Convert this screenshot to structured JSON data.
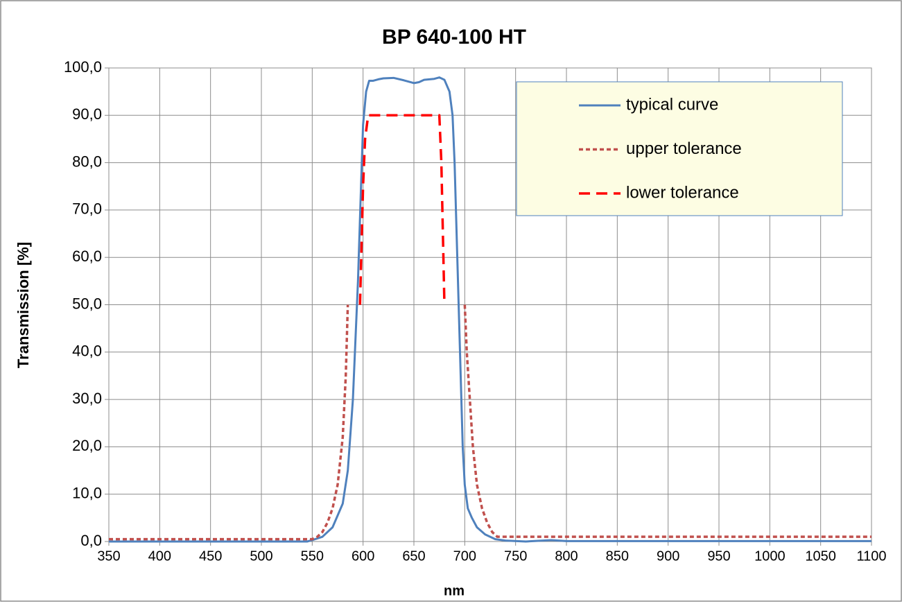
{
  "chart_data": {
    "type": "line",
    "title": "BP 640-100 HT",
    "xlabel": "nm",
    "ylabel": "Transmission [%]",
    "xlim": [
      350,
      1100
    ],
    "ylim": [
      0,
      100
    ],
    "xticks": [
      350,
      400,
      450,
      500,
      550,
      600,
      650,
      700,
      750,
      800,
      850,
      900,
      950,
      1000,
      1050,
      1100
    ],
    "yticks": [
      {
        "value": 0,
        "label": "0,0"
      },
      {
        "value": 10,
        "label": "10,0"
      },
      {
        "value": 20,
        "label": "20,0"
      },
      {
        "value": 30,
        "label": "30,0"
      },
      {
        "value": 40,
        "label": "40,0"
      },
      {
        "value": 50,
        "label": "50,0"
      },
      {
        "value": 60,
        "label": "60,0"
      },
      {
        "value": 70,
        "label": "70,0"
      },
      {
        "value": 80,
        "label": "80,0"
      },
      {
        "value": 90,
        "label": "90,0"
      },
      {
        "value": 100,
        "label": "100,0"
      }
    ],
    "grid": true,
    "legend": "upper right",
    "series": [
      {
        "name": "typical curve",
        "color": "#4f81bd",
        "style": "solid",
        "x": [
          350,
          545,
          550,
          560,
          570,
          580,
          585,
          590,
          595,
          598,
          600,
          603,
          606,
          610,
          615,
          620,
          630,
          640,
          650,
          655,
          660,
          670,
          675,
          680,
          685,
          688,
          690,
          692,
          694,
          696,
          698,
          700,
          703,
          707,
          712,
          720,
          730,
          740,
          760,
          785,
          800,
          1100
        ],
        "values": [
          0,
          0,
          0.3,
          1,
          3,
          8,
          15,
          30,
          55,
          75,
          88,
          95,
          97.3,
          97.3,
          97.6,
          97.8,
          97.9,
          97.4,
          96.8,
          97,
          97.5,
          97.7,
          98,
          97.5,
          95,
          90,
          80,
          65,
          50,
          35,
          20,
          12,
          7,
          5,
          3,
          1.5,
          0.5,
          0.2,
          0,
          0.3,
          0.1,
          0.1
        ]
      },
      {
        "name": "upper tolerance",
        "color": "#c0504d",
        "style": "dotted",
        "x": [
          350,
          550,
          555,
          560,
          565,
          570,
          575,
          580,
          583,
          585,
          650,
          700,
          702,
          705,
          708,
          712,
          717,
          722,
          727,
          732,
          1100
        ],
        "values": [
          0.5,
          0.5,
          1,
          2,
          4,
          7,
          12,
          22,
          35,
          50,
          null,
          50,
          40,
          30,
          20,
          12,
          7,
          4,
          2,
          1,
          1
        ]
      },
      {
        "name": "lower tolerance",
        "color": "#ff0000",
        "style": "dashed",
        "x": [
          597,
          600,
          602,
          605,
          675,
          677,
          680
        ],
        "values": [
          50,
          75,
          85,
          90,
          90,
          80,
          50
        ]
      }
    ]
  }
}
